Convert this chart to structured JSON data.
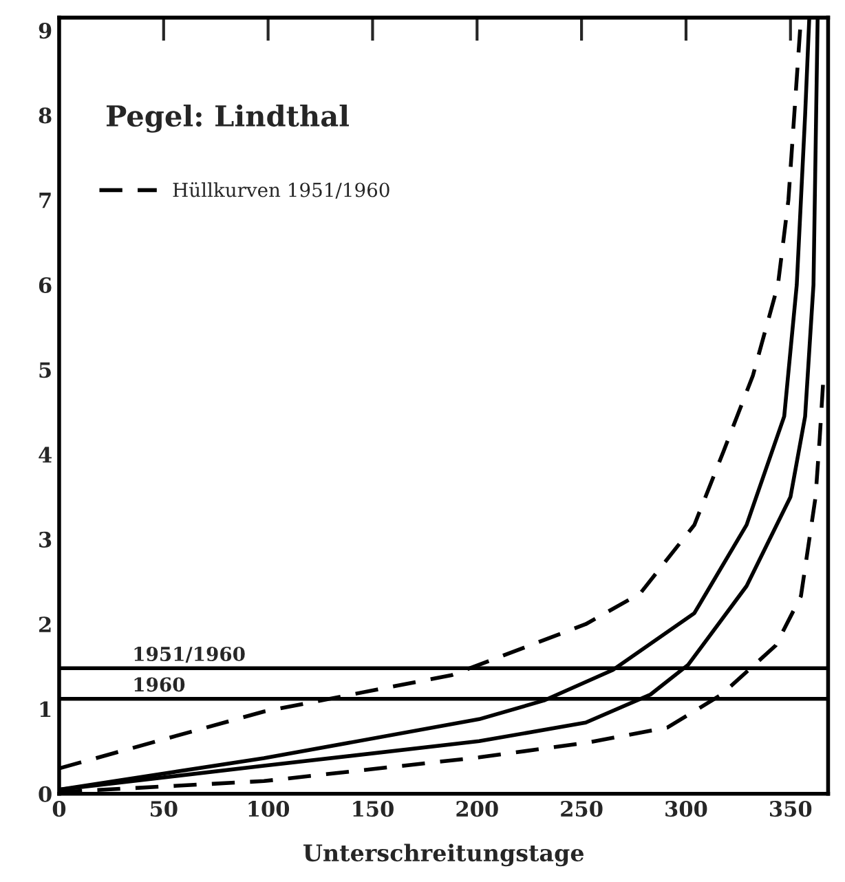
{
  "chart_data": {
    "type": "line",
    "title": "Pegel: Lindthal",
    "xlabel": "Unterschreitungstage",
    "xlim": [
      0,
      368
    ],
    "ylim": [
      0,
      9.15
    ],
    "xticks": [
      0,
      50,
      100,
      150,
      200,
      250,
      300,
      350
    ],
    "yticks": [
      0,
      1,
      2,
      3,
      4,
      5,
      6,
      7,
      8,
      9
    ],
    "grid": false,
    "legend": "top left",
    "marker": "none",
    "series": [
      {
        "name": "Hüllkurven 1951/1960",
        "color": "#000000",
        "line_style": "dashed",
        "x": [
          0,
          98,
          188,
          252,
          278,
          304,
          318,
          332,
          344,
          349,
          355
        ],
        "values": [
          0.3,
          0.97,
          1.4,
          2.0,
          2.36,
          3.17,
          4.04,
          4.93,
          6,
          7,
          9.15
        ]
      },
      {
        "color": "#000000",
        "line_style": "solid",
        "x": [
          0,
          98,
          201,
          232,
          265,
          304,
          329,
          347,
          353,
          357,
          359
        ],
        "values": [
          0.05,
          0.42,
          0.88,
          1.1,
          1.46,
          2.13,
          3.17,
          4.45,
          6,
          8,
          9.15
        ]
      },
      {
        "color": "#000000",
        "line_style": "solid",
        "x": [
          0,
          98,
          201,
          252,
          283,
          301,
          329,
          350,
          357,
          361,
          363
        ],
        "values": [
          0.05,
          0.33,
          0.62,
          0.84,
          1.17,
          1.52,
          2.45,
          3.5,
          4.45,
          6,
          9.15
        ]
      },
      {
        "color": "#000000",
        "line_style": "dashed",
        "x": [
          0,
          98,
          201,
          252,
          291,
          317,
          343,
          355,
          362,
          364,
          366
        ],
        "values": [
          0.02,
          0.15,
          0.43,
          0.6,
          0.78,
          1.17,
          1.75,
          2.33,
          3.5,
          4.2,
          5
        ]
      }
    ],
    "ref_lines": [
      {
        "axis": "y",
        "value": 1.48,
        "color": "#000000",
        "line_style": "solid"
      },
      {
        "axis": "y",
        "value": 1.12,
        "color": "#000000",
        "line_style": "solid"
      }
    ],
    "annotations": [
      {
        "text": "1951/1960",
        "x": 35,
        "y": 1.48
      },
      {
        "text": "1960",
        "x": 35,
        "y": 1.12
      }
    ]
  }
}
